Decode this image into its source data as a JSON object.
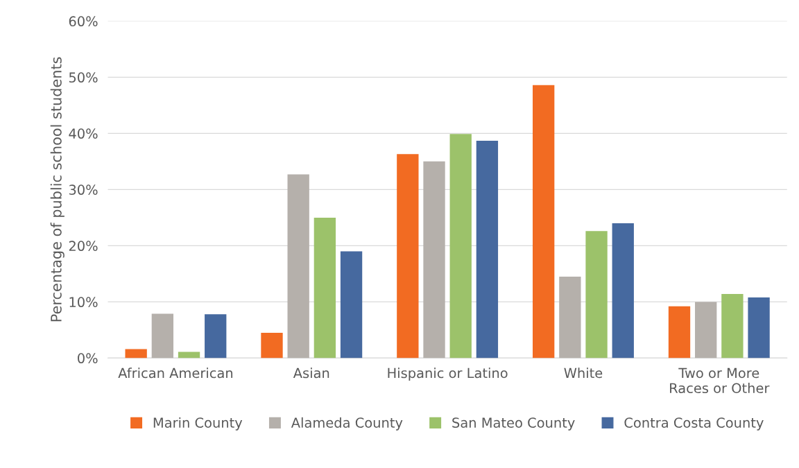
{
  "chart_data": {
    "type": "bar",
    "ylabel": "Percentage of public school students",
    "categories": [
      "African American",
      "Asian",
      "Hispanic or Latino",
      "White",
      "Two or More\nRaces or Other"
    ],
    "series": [
      {
        "name": "Marin County",
        "color": "#f26b22",
        "values": [
          1.6,
          4.5,
          36.3,
          48.6,
          9.2
        ]
      },
      {
        "name": "Alameda County",
        "color": "#b5b0ab",
        "values": [
          7.9,
          32.7,
          35.0,
          14.5,
          10.0
        ]
      },
      {
        "name": "San Mateo County",
        "color": "#9cc26a",
        "values": [
          1.1,
          25.0,
          39.9,
          22.6,
          11.4
        ]
      },
      {
        "name": "Contra Costa County",
        "color": "#46699f",
        "values": [
          7.8,
          19.0,
          38.7,
          24.0,
          10.8
        ]
      }
    ],
    "ylim": [
      0,
      60
    ],
    "yticks": [
      {
        "value": 0,
        "label": "0%"
      },
      {
        "value": 10,
        "label": "10%"
      },
      {
        "value": 20,
        "label": "20%"
      },
      {
        "value": 30,
        "label": "30%"
      },
      {
        "value": 40,
        "label": "40%"
      },
      {
        "value": 50,
        "label": "50%"
      },
      {
        "value": 60,
        "label": "60%"
      }
    ],
    "grid": "y",
    "legend": "bottom"
  }
}
